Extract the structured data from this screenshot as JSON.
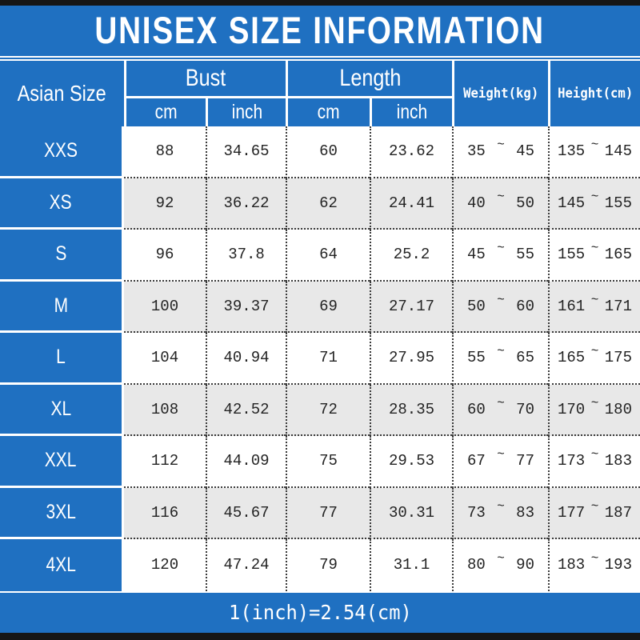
{
  "title": "UNISEX SIZE INFORMATION",
  "colors": {
    "blue": "#1f70c1",
    "row-alt": "#e8e8e8",
    "bar": "#161616"
  },
  "table": {
    "size_col_header": "Asian Size",
    "bust_group": "Bust",
    "length_group": "Length",
    "sub_cm": "cm",
    "sub_inch": "inch",
    "weight_header": "Weight(kg)",
    "height_header": "Height(cm)",
    "tilde": "~",
    "rows": [
      {
        "size": "XXS",
        "bust_cm": "88",
        "bust_inch": "34.65",
        "length_cm": "60",
        "length_inch": "23.62",
        "weight_min": "35",
        "weight_max": "45",
        "height_min": "135",
        "height_max": "145"
      },
      {
        "size": "XS",
        "bust_cm": "92",
        "bust_inch": "36.22",
        "length_cm": "62",
        "length_inch": "24.41",
        "weight_min": "40",
        "weight_max": "50",
        "height_min": "145",
        "height_max": "155"
      },
      {
        "size": "S",
        "bust_cm": "96",
        "bust_inch": "37.8",
        "length_cm": "64",
        "length_inch": "25.2",
        "weight_min": "45",
        "weight_max": "55",
        "height_min": "155",
        "height_max": "165"
      },
      {
        "size": "M",
        "bust_cm": "100",
        "bust_inch": "39.37",
        "length_cm": "69",
        "length_inch": "27.17",
        "weight_min": "50",
        "weight_max": "60",
        "height_min": "161",
        "height_max": "171"
      },
      {
        "size": "L",
        "bust_cm": "104",
        "bust_inch": "40.94",
        "length_cm": "71",
        "length_inch": "27.95",
        "weight_min": "55",
        "weight_max": "65",
        "height_min": "165",
        "height_max": "175"
      },
      {
        "size": "XL",
        "bust_cm": "108",
        "bust_inch": "42.52",
        "length_cm": "72",
        "length_inch": "28.35",
        "weight_min": "60",
        "weight_max": "70",
        "height_min": "170",
        "height_max": "180"
      },
      {
        "size": "XXL",
        "bust_cm": "112",
        "bust_inch": "44.09",
        "length_cm": "75",
        "length_inch": "29.53",
        "weight_min": "67",
        "weight_max": "77",
        "height_min": "173",
        "height_max": "183"
      },
      {
        "size": "3XL",
        "bust_cm": "116",
        "bust_inch": "45.67",
        "length_cm": "77",
        "length_inch": "30.31",
        "weight_min": "73",
        "weight_max": "83",
        "height_min": "177",
        "height_max": "187"
      },
      {
        "size": "4XL",
        "bust_cm": "120",
        "bust_inch": "47.24",
        "length_cm": "79",
        "length_inch": "31.1",
        "weight_min": "80",
        "weight_max": "90",
        "height_min": "183",
        "height_max": "193"
      }
    ]
  },
  "footer": {
    "note": "1(inch)=2.54(cm)"
  },
  "chart_data": {
    "type": "table",
    "title": "UNISEX SIZE INFORMATION",
    "columns": [
      "Asian Size",
      "Bust cm",
      "Bust inch",
      "Length cm",
      "Length inch",
      "Weight(kg)",
      "Height(cm)"
    ],
    "rows": [
      [
        "XXS",
        88,
        34.65,
        60,
        23.62,
        "35~45",
        "135~145"
      ],
      [
        "XS",
        92,
        36.22,
        62,
        24.41,
        "40~50",
        "145~155"
      ],
      [
        "S",
        96,
        37.8,
        64,
        25.2,
        "45~55",
        "155~165"
      ],
      [
        "M",
        100,
        39.37,
        69,
        27.17,
        "50~60",
        "161~171"
      ],
      [
        "L",
        104,
        40.94,
        71,
        27.95,
        "55~65",
        "165~175"
      ],
      [
        "XL",
        108,
        42.52,
        72,
        28.35,
        "60~70",
        "170~180"
      ],
      [
        "XXL",
        112,
        44.09,
        75,
        29.53,
        "67~77",
        "173~183"
      ],
      [
        "3XL",
        116,
        45.67,
        77,
        30.31,
        "73~83",
        "177~187"
      ],
      [
        "4XL",
        120,
        47.24,
        79,
        31.1,
        "80~90",
        "183~193"
      ]
    ],
    "footnote": "1(inch)=2.54(cm)"
  }
}
